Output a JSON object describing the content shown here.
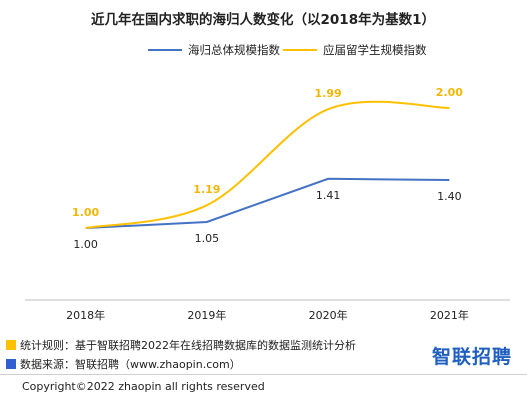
{
  "chart_data": {
    "type": "line",
    "title": "近几年在国内求职的海归人数变化（以2018年为基数1）",
    "categories": [
      "2018年",
      "2019年",
      "2020年",
      "2021年"
    ],
    "series": [
      {
        "name": "海归总体规模指数",
        "values": [
          1.0,
          1.05,
          1.41,
          1.4
        ],
        "labels": [
          "1.00",
          "1.05",
          "1.41",
          "1.40"
        ],
        "color": "#4472c4",
        "label_color": "#222222"
      },
      {
        "name": "应届留学生规模指数",
        "values": [
          1.0,
          1.19,
          1.99,
          2.0
        ],
        "labels": [
          "1.00",
          "1.19",
          "1.99",
          "2.00"
        ],
        "color": "#ffc000",
        "label_color": "#f2b705"
      }
    ],
    "ylim": [
      0.4,
      2.4
    ],
    "legend": "top",
    "grid": false
  },
  "footer": {
    "rule_text": "统计规则：基于智联招聘2022年在线招聘数据库的数据监测统计分析",
    "source_text": "数据来源：智联招聘（www.zhaopin.com）",
    "rule_color": "#ffc000",
    "source_color": "#2f5fd0",
    "brand": "智联招聘",
    "copyright": "Copyright©2022 zhaopin all rights reserved"
  }
}
